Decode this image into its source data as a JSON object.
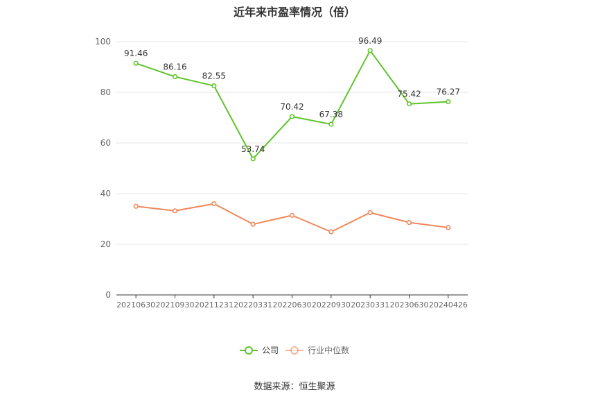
{
  "chart_data": {
    "type": "line",
    "title": "近年来市盈率情况（倍）",
    "categories": [
      "20210630",
      "20210930",
      "20211231",
      "20220331",
      "20220630",
      "20220930",
      "20230331",
      "20230630",
      "20240426"
    ],
    "series": [
      {
        "name": "公司",
        "color": "#5ec42a",
        "values": [
          91.46,
          86.16,
          82.55,
          53.74,
          70.42,
          67.38,
          96.49,
          75.42,
          76.27
        ],
        "show_labels": true
      },
      {
        "name": "行业中位数",
        "color": "#f0875a",
        "values": [
          35.0,
          33.2,
          36.0,
          27.9,
          31.4,
          24.9,
          32.5,
          28.6,
          26.6
        ],
        "show_labels": false
      }
    ],
    "ylim": [
      0,
      100
    ],
    "yticks": [
      0,
      20,
      40,
      60,
      80,
      100
    ],
    "grid": true,
    "legend": "bottom-center"
  },
  "source": "数据来源：恒生聚源"
}
